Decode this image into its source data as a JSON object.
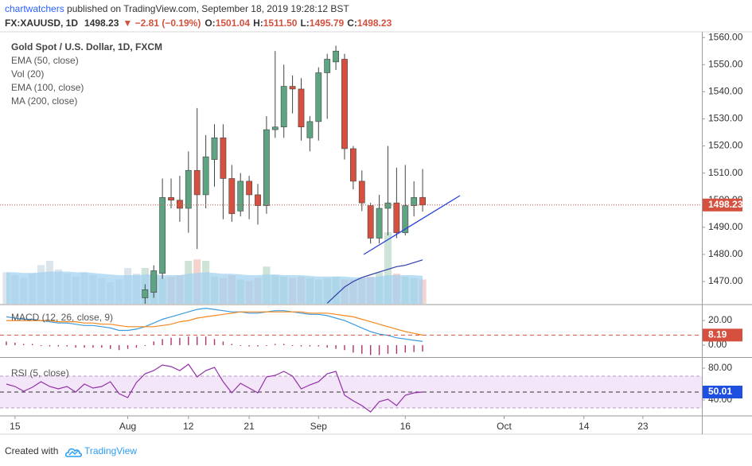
{
  "header": {
    "author": "chartwatchers",
    "published": " published on TradingView.com, September 18, 2019 19:28:12 BST",
    "symbol": "FX:XAUUSD, 1D",
    "last": "1498.23",
    "change": "▼ −2.81 (−0.19%)",
    "ohlc": [
      {
        "label": "O:",
        "value": "1501.04"
      },
      {
        "label": "H:",
        "value": "1511.50"
      },
      {
        "label": "L:",
        "value": "1495.79"
      },
      {
        "label": "C:",
        "value": "1498.23"
      }
    ]
  },
  "footer": {
    "created": "Created with",
    "brand": "TradingView"
  },
  "chart_data": [
    {
      "type": "candlestick",
      "title": "Gold Spot / U.S. Dollar, 1D, FXCM",
      "up_color": "#5ea482",
      "down_color": "#d5503e",
      "xlim": [
        -0.73,
        80.2
      ],
      "xticks": [
        {
          "value": 1,
          "label": "15"
        },
        {
          "value": 14,
          "label": "Aug"
        },
        {
          "value": 21,
          "label": "12"
        },
        {
          "value": 28,
          "label": "21"
        },
        {
          "value": 36,
          "label": "Sep"
        },
        {
          "value": 46,
          "label": "16"
        },
        {
          "value": 57.4,
          "label": "Oct"
        },
        {
          "value": 66.6,
          "label": "14"
        },
        {
          "value": 73.4,
          "label": "23"
        }
      ],
      "ylim": [
        1461.8,
        1562.1
      ],
      "yticks": [
        {
          "value": 1470,
          "label": "1470.00"
        },
        {
          "value": 1480,
          "label": "1480.00"
        },
        {
          "value": 1490,
          "label": "1490.00"
        },
        {
          "value": 1500,
          "label": "1500.00"
        },
        {
          "value": 1510,
          "label": "1510.00"
        },
        {
          "value": 1520,
          "label": "1520.00"
        },
        {
          "value": 1530,
          "label": "1530.00"
        },
        {
          "value": 1540,
          "label": "1540.00"
        },
        {
          "value": 1550,
          "label": "1550.00"
        },
        {
          "value": 1560,
          "label": "1560.00"
        }
      ],
      "open": [
        null,
        null,
        null,
        null,
        null,
        null,
        null,
        null,
        null,
        null,
        null,
        null,
        null,
        null,
        null,
        null,
        1464,
        1466,
        1473,
        1501,
        1500,
        1497,
        1511,
        1502,
        1515,
        1523,
        1508,
        1496,
        1507,
        1502,
        1498,
        1526,
        1527,
        1542,
        1541,
        1523,
        1529,
        1547,
        1551,
        1552,
        1519,
        1507,
        1498,
        1486,
        1497,
        1499,
        1488,
        1498,
        1501.04
      ],
      "high": [
        null,
        null,
        null,
        null,
        null,
        null,
        null,
        null,
        null,
        null,
        null,
        null,
        null,
        null,
        null,
        null,
        1469,
        1476,
        1508,
        1508,
        1509,
        1518,
        1534,
        1524,
        1528,
        1528,
        1513,
        1510,
        1509,
        1506,
        1531,
        1555,
        1550,
        1546,
        1545,
        1531,
        1549,
        1554,
        1557,
        1554,
        1520,
        1511,
        1499,
        1502,
        1520,
        1512,
        1513,
        1507,
        1511.5
      ],
      "low": [
        null,
        null,
        null,
        null,
        null,
        null,
        null,
        null,
        null,
        null,
        null,
        null,
        null,
        null,
        null,
        null,
        1460,
        1464,
        1471,
        1497,
        1492,
        1488,
        1482,
        1497,
        1505,
        1493,
        1492,
        1494,
        1493,
        1491,
        1495,
        1523,
        1523,
        1532,
        1522,
        1518,
        1522,
        1530,
        1548,
        1515,
        1504,
        1496,
        1484,
        1484,
        1487,
        1486,
        1487,
        1494,
        1495.79
      ],
      "close": [
        null,
        null,
        null,
        null,
        null,
        null,
        null,
        null,
        null,
        null,
        null,
        null,
        null,
        null,
        null,
        null,
        1467,
        1474,
        1501,
        1500,
        1497,
        1511,
        1502,
        1516,
        1523,
        1508,
        1495,
        1507,
        1502,
        1498,
        1526,
        1527,
        1542,
        1541,
        1527,
        1529,
        1547,
        1552,
        1555,
        1519,
        1507,
        1499,
        1486,
        1497,
        1499,
        1488,
        1498,
        1501,
        1498.23
      ],
      "series": [
        {
          "name": "EMA (50, close)",
          "color": "#2b3fa8",
          "values": [
            null,
            null,
            null,
            null,
            null,
            null,
            null,
            null,
            null,
            null,
            null,
            null,
            null,
            null,
            null,
            null,
            null,
            null,
            null,
            null,
            null,
            null,
            null,
            null,
            null,
            null,
            null,
            null,
            null,
            null,
            null,
            null,
            null,
            null,
            null,
            null,
            null,
            1462,
            1465,
            1468,
            1470,
            1471.5,
            1472.5,
            1473.5,
            1474.5,
            1475.5,
            1476,
            1477,
            1478
          ]
        }
      ],
      "volume": {
        "name": "Vol (20)",
        "ylim": [
          0,
          380
        ],
        "ma_color": "#9fd0ef",
        "values": [
          44,
          40,
          36,
          42,
          54,
          60,
          48,
          42,
          38,
          44,
          40,
          36,
          30,
          34,
          50,
          42,
          50,
          40,
          36,
          38,
          40,
          60,
          62,
          60,
          38,
          36,
          40,
          34,
          32,
          36,
          52,
          40,
          38,
          36,
          38,
          36,
          34,
          36,
          38,
          34,
          34,
          36,
          38,
          44,
          100,
          42,
          38,
          36,
          34
        ],
        "ma_values": [
          44,
          44,
          43,
          43,
          44,
          45,
          45,
          45,
          44,
          44,
          43,
          42,
          41,
          40,
          40,
          40,
          41,
          41,
          40,
          40,
          40,
          42,
          43,
          44,
          43,
          42,
          42,
          41,
          40,
          40,
          41,
          41,
          40,
          40,
          40,
          39,
          38,
          38,
          38,
          38,
          37,
          37,
          37,
          38,
          40,
          40,
          40,
          40,
          39
        ]
      },
      "studies": [
        "EMA (100, close)",
        "MA (200, close)"
      ]
    },
    {
      "type": "macd",
      "title": "MACD (12, 26, close, 9)",
      "ylim": [
        -9,
        32.3
      ],
      "yticks": [
        {
          "value": 20,
          "label": "20.00"
        },
        {
          "value": 0,
          "label": "0.00"
        }
      ],
      "series": [
        {
          "name": "MACD",
          "color": "#3c9be0",
          "values": [
            23,
            22,
            21,
            21,
            20,
            19,
            18,
            18,
            17,
            16,
            16,
            15,
            14,
            12,
            12,
            13,
            15,
            18,
            21,
            23,
            25,
            27,
            29,
            30,
            29,
            28,
            27,
            27,
            26,
            26,
            27,
            28,
            28,
            27,
            26,
            25,
            25,
            24,
            22,
            20,
            17,
            14,
            11,
            9,
            8,
            6,
            5,
            4,
            3
          ]
        },
        {
          "name": "Signal",
          "color": "#f4871e",
          "values": [
            20,
            20,
            20,
            20,
            20,
            20,
            19,
            19,
            19,
            18,
            18,
            17,
            17,
            16,
            15,
            15,
            15,
            15,
            16,
            17,
            19,
            20,
            22,
            23,
            24,
            25,
            26,
            27,
            27,
            27,
            27,
            27,
            27,
            27,
            27,
            26,
            26,
            26,
            25,
            24,
            23,
            21,
            19,
            17,
            15,
            13,
            11,
            9.6,
            8.19
          ]
        }
      ],
      "histogram": {
        "color": "#b3306e",
        "values": [
          3,
          2,
          1,
          1,
          0,
          -1,
          -1,
          -1,
          -2,
          -2,
          -2,
          -2,
          -3,
          -4,
          -3,
          -2,
          0,
          3,
          5,
          6,
          6,
          7,
          7,
          7,
          5,
          3,
          1,
          0,
          -1,
          -1,
          0,
          1,
          1,
          0,
          -1,
          -1,
          -1,
          -2,
          -3,
          -4,
          -6,
          -7,
          -8,
          -8,
          -7,
          -7,
          -6,
          -5.6,
          -5.19
        ]
      }
    },
    {
      "type": "line",
      "title": "RSI (5, close)",
      "ylim": [
        21,
        92
      ],
      "yticks": [
        {
          "value": 80,
          "label": "80.00"
        },
        {
          "value": 40,
          "label": "40.00"
        }
      ],
      "band": [
        30,
        70
      ],
      "midline": 50,
      "series": [
        {
          "name": "RSI",
          "color": "#9331a8",
          "values": [
            60,
            57,
            51,
            56,
            63,
            57,
            54,
            57,
            50,
            60,
            55,
            57,
            63,
            48,
            43,
            62,
            73,
            77,
            84,
            82,
            77,
            85,
            69,
            77,
            81,
            63,
            49,
            61,
            55,
            49,
            69,
            71,
            76,
            70,
            54,
            59,
            63,
            73,
            76,
            46,
            39,
            33,
            25,
            38,
            41,
            33,
            46,
            49,
            50.01
          ]
        }
      ]
    }
  ]
}
